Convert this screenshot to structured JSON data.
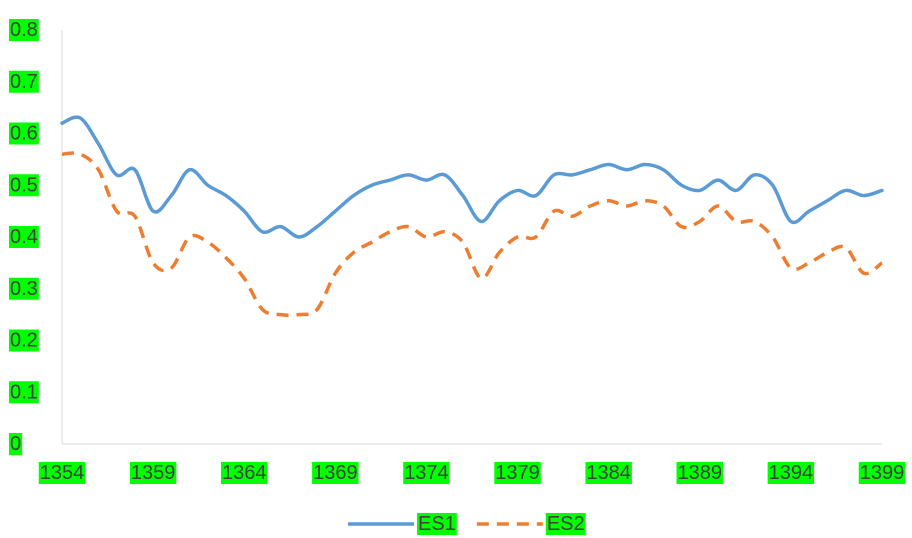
{
  "chart_data": {
    "type": "line",
    "title": "",
    "xlabel": "",
    "ylabel": "",
    "x": [
      1354,
      1355,
      1356,
      1357,
      1358,
      1359,
      1360,
      1361,
      1362,
      1363,
      1364,
      1365,
      1366,
      1367,
      1368,
      1369,
      1370,
      1371,
      1372,
      1373,
      1374,
      1375,
      1376,
      1377,
      1378,
      1379,
      1380,
      1381,
      1382,
      1383,
      1384,
      1385,
      1386,
      1387,
      1388,
      1389,
      1390,
      1391,
      1392,
      1393,
      1394,
      1395,
      1396,
      1397,
      1398,
      1399
    ],
    "x_tick_labels": [
      "1354",
      "1359",
      "1364",
      "1369",
      "1374",
      "1379",
      "1384",
      "1389",
      "1394",
      "1399"
    ],
    "y_tick_labels": [
      "0",
      "0.1",
      "0.2",
      "0.3",
      "0.4",
      "0.5",
      "0.6",
      "0.7",
      "0.8"
    ],
    "ylim": [
      0,
      0.8
    ],
    "grid": false,
    "legend_position": "bottom",
    "tick_label_highlight": "#00ff00",
    "series": [
      {
        "name": "ES1",
        "color": "#5b9bd5",
        "dash": "solid",
        "values": [
          0.62,
          0.63,
          0.58,
          0.52,
          0.53,
          0.45,
          0.48,
          0.53,
          0.5,
          0.48,
          0.45,
          0.41,
          0.42,
          0.4,
          0.42,
          0.45,
          0.48,
          0.5,
          0.51,
          0.52,
          0.51,
          0.52,
          0.48,
          0.43,
          0.47,
          0.49,
          0.48,
          0.52,
          0.52,
          0.53,
          0.54,
          0.53,
          0.54,
          0.53,
          0.5,
          0.49,
          0.51,
          0.49,
          0.52,
          0.5,
          0.43,
          0.45,
          0.47,
          0.49,
          0.48,
          0.49
        ]
      },
      {
        "name": "ES2",
        "color": "#ed7d31",
        "dash": "dashed",
        "values": [
          0.56,
          0.56,
          0.53,
          0.45,
          0.44,
          0.35,
          0.34,
          0.4,
          0.39,
          0.36,
          0.32,
          0.26,
          0.25,
          0.25,
          0.26,
          0.33,
          0.37,
          0.39,
          0.41,
          0.42,
          0.4,
          0.41,
          0.39,
          0.32,
          0.37,
          0.4,
          0.4,
          0.45,
          0.44,
          0.46,
          0.47,
          0.46,
          0.47,
          0.46,
          0.42,
          0.43,
          0.46,
          0.43,
          0.43,
          0.4,
          0.34,
          0.35,
          0.37,
          0.38,
          0.33,
          0.35
        ]
      }
    ]
  }
}
